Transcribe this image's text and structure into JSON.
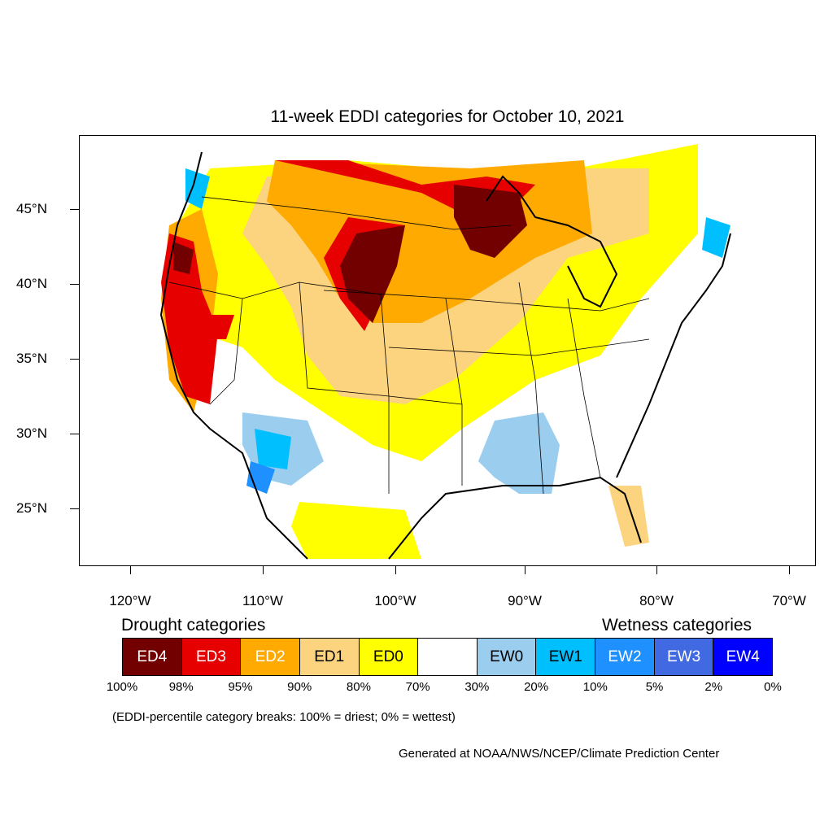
{
  "title": "11-week EDDI categories for October 10, 2021",
  "axes": {
    "lat_labels": [
      "45°N",
      "40°N",
      "35°N",
      "30°N",
      "25°N"
    ],
    "lon_labels": [
      "120°W",
      "110°W",
      "100°W",
      "90°W",
      "80°W",
      "70°W"
    ]
  },
  "legend": {
    "drought_heading": "Drought categories",
    "wetness_heading": "Wetness categories",
    "categories": [
      {
        "label": "ED4",
        "color": "#730000",
        "text_color": "#ffffff"
      },
      {
        "label": "ED3",
        "color": "#e60000",
        "text_color": "#ffffff"
      },
      {
        "label": "ED2",
        "color": "#ffaa00",
        "text_color": "#ffffff"
      },
      {
        "label": "ED1",
        "color": "#fcd37f",
        "text_color": "#000000"
      },
      {
        "label": "ED0",
        "color": "#ffff00",
        "text_color": "#000000"
      },
      {
        "label": "",
        "color": "#ffffff",
        "text_color": "#000000"
      },
      {
        "label": "EW0",
        "color": "#9bcdef",
        "text_color": "#000000"
      },
      {
        "label": "EW1",
        "color": "#00bfff",
        "text_color": "#000000"
      },
      {
        "label": "EW2",
        "color": "#1e90ff",
        "text_color": "#ffffff"
      },
      {
        "label": "EW3",
        "color": "#4169e1",
        "text_color": "#ffffff"
      },
      {
        "label": "EW4",
        "color": "#0000ff",
        "text_color": "#ffffff"
      }
    ],
    "percentiles": [
      "100%",
      "98%",
      "95%",
      "90%",
      "80%",
      "70%",
      "30%",
      "20%",
      "10%",
      "5%",
      "2%",
      "0%"
    ]
  },
  "note": "(EDDI-percentile category breaks: 100% = driest; 0% = wettest)",
  "credit": "Generated at NOAA/NWS/NCEP/Climate Prediction Center"
}
